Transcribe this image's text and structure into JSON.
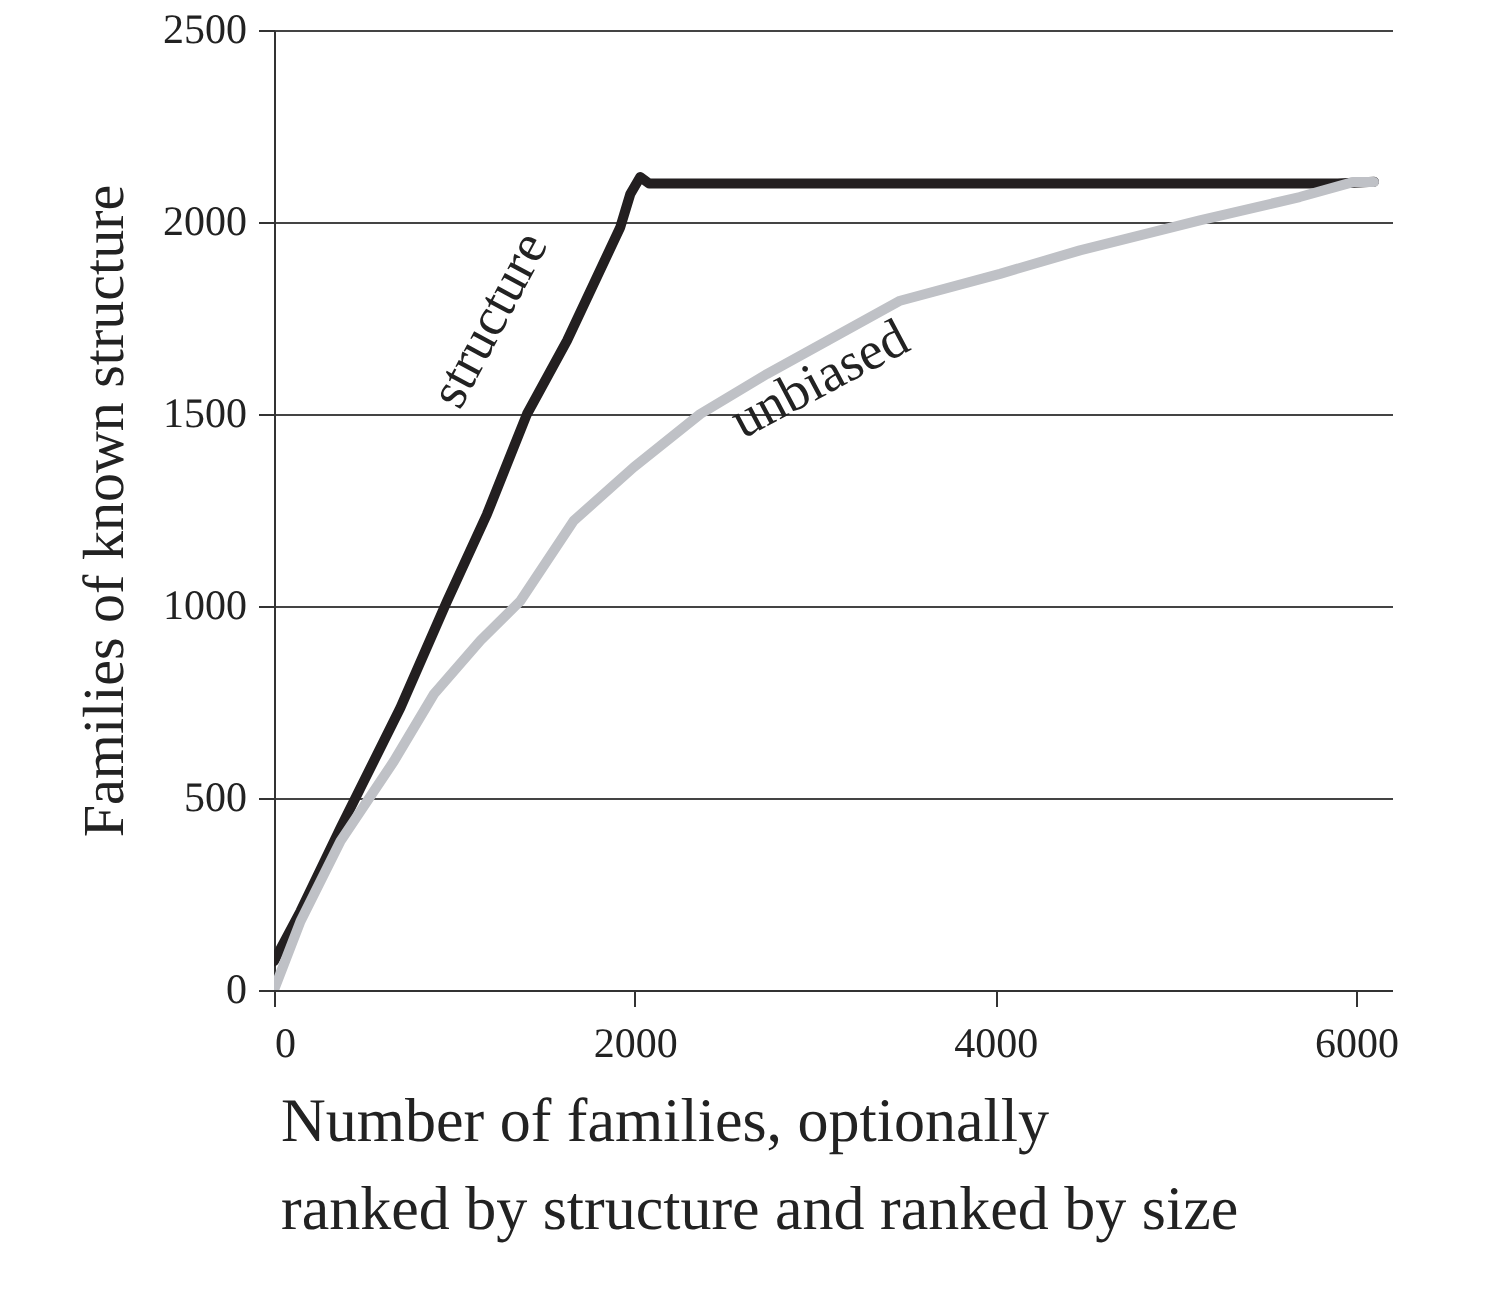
{
  "chart_data": {
    "type": "line",
    "xlabel": "Number of families, optionally ranked by structure and ranked by size",
    "ylabel": "Families of known structure",
    "xlim": [
      0,
      6200
    ],
    "xticks": [
      0,
      2000,
      4000,
      6000
    ],
    "ylim": [
      0,
      2500
    ],
    "yticks": [
      0,
      500,
      1000,
      1500,
      2000,
      2500
    ],
    "grid": "y",
    "marker": "none",
    "line_style": "solid",
    "annotations": [
      "structure",
      "unbiased"
    ],
    "series": [
      {
        "color": "#231f20",
        "x": [
          0,
          147,
          369,
          701,
          960,
          1181,
          1403,
          1625,
          1920,
          1976,
          2031,
          2080,
          3000,
          4000,
          5000,
          5900,
          6100
        ],
        "values": [
          75,
          205,
          422,
          735,
          1013,
          1239,
          1500,
          1691,
          1986,
          2073,
          2117,
          2100,
          2100,
          2100,
          2100,
          2100,
          2105
        ]
      },
      {
        "color": "#bfc1c6",
        "x": [
          0,
          147,
          369,
          665,
          886,
          1145,
          1366,
          1662,
          1994,
          2364,
          2733,
          3065,
          3472,
          4026,
          4469,
          5134,
          5688,
          5983,
          6100
        ],
        "values": [
          0,
          179,
          388,
          596,
          770,
          910,
          1013,
          1222,
          1361,
          1500,
          1604,
          1690,
          1795,
          1865,
          1926,
          2004,
          2065,
          2104,
          2104
        ]
      }
    ]
  }
}
